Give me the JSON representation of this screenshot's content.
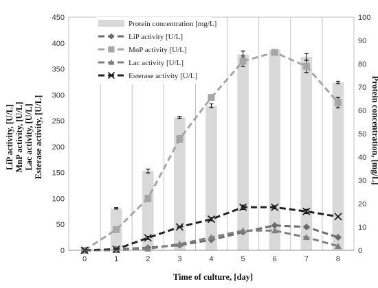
{
  "chart_data": {
    "type": "bar",
    "x": [
      "0",
      "1",
      "2",
      "3",
      "4",
      "5",
      "6",
      "7",
      "8"
    ],
    "xlabel": "Time of culture, [day]",
    "ylabel_left": [
      "LiP activity, [U/L]",
      "MnP activity, [U/L]",
      "Lac activity, [U/L]",
      "Esterase activity, [U/L]"
    ],
    "ylabel_right": "Protein concentration, [mg/L]",
    "ylim_left": [
      0,
      450
    ],
    "yticks_left": [
      0,
      50,
      100,
      150,
      200,
      250,
      300,
      350,
      400,
      450
    ],
    "ylim_right": [
      0,
      100
    ],
    "yticks_right": [
      0,
      10,
      20,
      30,
      40,
      50,
      60,
      70,
      80,
      90,
      100
    ],
    "grid": "vertical",
    "legend_position": "top-left",
    "bars": {
      "name": "Protein concentration [mg/L]",
      "axis": "right",
      "color": "#d9d9d9",
      "values": [
        0,
        18,
        34,
        57,
        62,
        84,
        86,
        83,
        72
      ],
      "errors": [
        0,
        0.3,
        0.8,
        0.4,
        0.8,
        1.5,
        0,
        1.5,
        0.5
      ]
    },
    "series": [
      {
        "name": "LiP activity [U/L]",
        "axis": "left",
        "marker": "diamond",
        "color": "#6b6b6b",
        "dash": "9,5",
        "values": [
          0,
          2,
          5,
          10,
          20,
          35,
          48,
          45,
          25
        ],
        "errors": [
          0,
          0,
          0,
          0,
          0,
          0,
          0,
          0,
          0
        ]
      },
      {
        "name": "MnP activity [U/L]",
        "axis": "left",
        "marker": "square",
        "color": "#a6a6a6",
        "dash": "9,5",
        "values": [
          0,
          40,
          100,
          215,
          295,
          365,
          382,
          355,
          285
        ],
        "errors": [
          0,
          0,
          6,
          6,
          0,
          10,
          0,
          12,
          10
        ]
      },
      {
        "name": "Lac activity [U/L]",
        "axis": "left",
        "marker": "triangle",
        "color": "#7f7f7f",
        "dash": "9,5",
        "values": [
          0,
          0,
          3,
          12,
          25,
          38,
          38,
          25,
          8
        ],
        "errors": [
          0,
          0,
          0,
          0,
          0,
          0,
          0,
          0,
          0
        ]
      },
      {
        "name": "Esterase activity [U/L]",
        "axis": "left",
        "marker": "x",
        "color": "#222222",
        "dash": "9,5",
        "values": [
          0,
          2,
          24,
          45,
          60,
          83,
          83,
          75,
          65
        ],
        "errors": [
          0,
          0,
          3,
          0,
          3,
          4,
          3,
          4,
          0
        ]
      }
    ]
  }
}
